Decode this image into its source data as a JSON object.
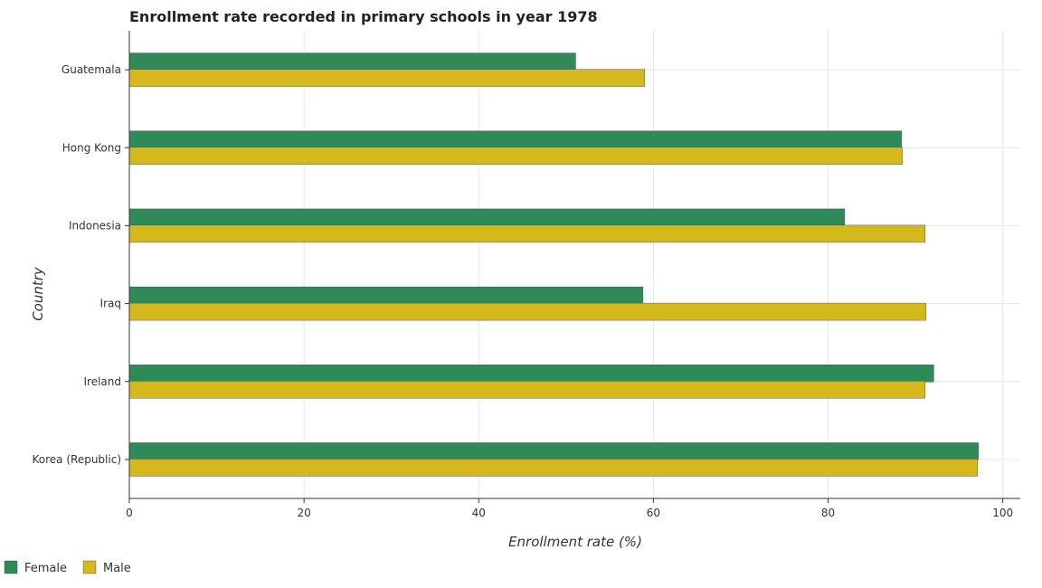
{
  "chart_data": {
    "type": "bar",
    "orientation": "horizontal",
    "title": "Enrollment rate recorded in primary schools in year 1978",
    "xlabel": "Enrollment rate (%)",
    "ylabel": "Country",
    "xlim": [
      0,
      102
    ],
    "xticks": [
      0,
      20,
      40,
      60,
      80,
      100
    ],
    "categories": [
      "Guatemala",
      "Hong Kong",
      "Indonesia",
      "Iraq",
      "Ireland",
      "Korea (Republic)"
    ],
    "series": [
      {
        "name": "Female",
        "color": "#2e8b57",
        "values": [
          51.1,
          88.4,
          81.9,
          58.8,
          92.1,
          97.2
        ]
      },
      {
        "name": "Male",
        "color": "#d4b81c",
        "values": [
          59.0,
          88.5,
          91.1,
          91.2,
          91.1,
          97.1
        ]
      }
    ],
    "grid": true,
    "legend_position": "bottom-left"
  }
}
